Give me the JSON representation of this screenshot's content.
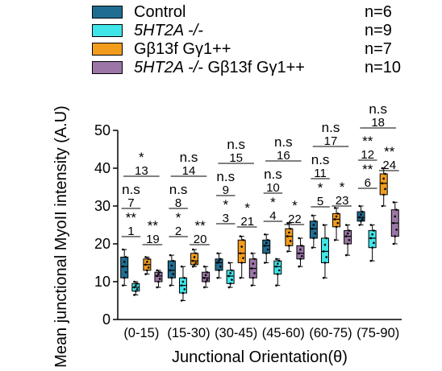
{
  "legend": [
    {
      "label": "Control",
      "italic_part": "",
      "rest": "Control",
      "n": "n=6",
      "color": "#1f6e92"
    },
    {
      "label": "5HT2A -/-",
      "italic_part": "5HT2A -/-",
      "rest": "",
      "n": "n=9",
      "color": "#40e5e8"
    },
    {
      "label": "Gβ13f Gγ1++",
      "italic_part": "",
      "rest": "Gβ13f Gγ1++",
      "n": "n=7",
      "color": "#f29c1e"
    },
    {
      "label": "5HT2A -/-  Gβ13f Gγ1++",
      "italic_part": "5HT2A -/-",
      "rest": "  Gβ13f Gγ1++",
      "n": "n=10",
      "color": "#9b76a6"
    }
  ],
  "chart_data": {
    "type": "box",
    "xlabel": "Junctional Orientation(θ)",
    "ylabel": "Mean junctional MyoII intensity (A.U)",
    "ylim": [
      0,
      50
    ],
    "yticks": [
      "0",
      "10",
      "20",
      "30",
      "40",
      "50"
    ],
    "categories": [
      "(0-15)",
      "(15-30)",
      "(30-45)",
      "(45-60)",
      "(60-75)",
      "(75-90)"
    ],
    "series": [
      {
        "name": "Control",
        "color": "#1f6e92",
        "boxes": [
          {
            "min": 9,
            "q1": 11,
            "median": 14,
            "q3": 16.5,
            "max": 18.5
          },
          {
            "min": 9,
            "q1": 11,
            "median": 13,
            "q3": 15.5,
            "max": 17
          },
          {
            "min": 11,
            "q1": 13,
            "median": 15,
            "q3": 16,
            "max": 17.5
          },
          {
            "min": 15,
            "q1": 17.5,
            "median": 19.5,
            "q3": 21,
            "max": 22.5
          },
          {
            "min": 19,
            "q1": 21.5,
            "median": 24,
            "q3": 26,
            "max": 27.5
          },
          {
            "min": 25,
            "q1": 26,
            "median": 27,
            "q3": 28.5,
            "max": 30
          }
        ]
      },
      {
        "name": "5HT2A -/-",
        "color": "#40e5e8",
        "boxes": [
          {
            "min": 6.5,
            "q1": 7.5,
            "median": 8.5,
            "q3": 9.5,
            "max": 10
          },
          {
            "min": 5,
            "q1": 7,
            "median": 9,
            "q3": 11,
            "max": 14
          },
          {
            "min": 8.5,
            "q1": 9.5,
            "median": 11.5,
            "q3": 13,
            "max": 15
          },
          {
            "min": 9,
            "q1": 12,
            "median": 14,
            "q3": 15.5,
            "max": 16
          },
          {
            "min": 11,
            "q1": 15,
            "median": 18,
            "q3": 21.5,
            "max": 25
          },
          {
            "min": 15.5,
            "q1": 19,
            "median": 21.5,
            "q3": 23.5,
            "max": 25
          }
        ]
      },
      {
        "name": "Gβ13f Gγ1++",
        "color": "#f29c1e",
        "boxes": [
          {
            "min": 12,
            "q1": 13,
            "median": 14.5,
            "q3": 16,
            "max": 16.5
          },
          {
            "min": 14,
            "q1": 14.5,
            "median": 15.5,
            "q3": 17.5,
            "max": 18.5
          },
          {
            "min": 11,
            "q1": 15,
            "median": 17.5,
            "q3": 21,
            "max": 22
          },
          {
            "min": 18,
            "q1": 19.5,
            "median": 22,
            "q3": 24,
            "max": 25.5
          },
          {
            "min": 21,
            "q1": 24.5,
            "median": 26.5,
            "q3": 28,
            "max": 29.5
          },
          {
            "min": 30,
            "q1": 33,
            "median": 36,
            "q3": 38.5,
            "max": 40
          }
        ]
      },
      {
        "name": "5HT2A -/-  Gβ13f Gγ1++",
        "color": "#9b76a6",
        "boxes": [
          {
            "min": 8.5,
            "q1": 10,
            "median": 11.5,
            "q3": 12.5,
            "max": 13
          },
          {
            "min": 8.5,
            "q1": 10,
            "median": 11,
            "q3": 12.5,
            "max": 14
          },
          {
            "min": 9,
            "q1": 11,
            "median": 13.5,
            "q3": 16,
            "max": 17.5
          },
          {
            "min": 14,
            "q1": 16,
            "median": 17.5,
            "q3": 19.5,
            "max": 21.5
          },
          {
            "min": 17,
            "q1": 20,
            "median": 22,
            "q3": 23.5,
            "max": 25
          },
          {
            "min": 20,
            "q1": 22,
            "median": 25.5,
            "q3": 29,
            "max": 31
          }
        ]
      }
    ],
    "annotations": [
      {
        "group": 0,
        "lines": [
          {
            "stars": "*",
            "label": "13",
            "top": true
          },
          {
            "stars": "n.s",
            "label": "7"
          },
          {
            "stars": "**",
            "label": "1"
          }
        ],
        "side": {
          "stars": "**",
          "label": "19"
        }
      },
      {
        "group": 1,
        "lines": [
          {
            "stars": "n.s",
            "label": "14",
            "top": true
          },
          {
            "stars": "n.s",
            "label": "8"
          },
          {
            "stars": "*",
            "label": "2"
          }
        ],
        "side": {
          "stars": "**",
          "label": "20"
        }
      },
      {
        "group": 2,
        "lines": [
          {
            "stars": "n.s",
            "label": "15",
            "top": true
          },
          {
            "stars": "n.s",
            "label": "9"
          },
          {
            "stars": "*",
            "label": "3"
          }
        ],
        "side": {
          "stars": "*",
          "label": "21"
        }
      },
      {
        "group": 3,
        "lines": [
          {
            "stars": "n.s",
            "label": "16",
            "top": true
          },
          {
            "stars": "n.s",
            "label": "10"
          },
          {
            "stars": "*",
            "label": "4"
          }
        ],
        "side": {
          "stars": "*",
          "label": "22"
        }
      },
      {
        "group": 4,
        "lines": [
          {
            "stars": "n.s",
            "label": "17",
            "top": true
          },
          {
            "stars": "n.s",
            "label": "11"
          },
          {
            "stars": "*",
            "label": "5"
          }
        ],
        "side": {
          "stars": "*",
          "label": "23"
        }
      },
      {
        "group": 5,
        "lines": [
          {
            "stars": "n.s",
            "label": "18",
            "top": true
          },
          {
            "stars": "**",
            "label": "12"
          },
          {
            "stars": "**",
            "label": "6"
          }
        ],
        "side": {
          "stars": "**",
          "label": "24"
        }
      }
    ]
  }
}
